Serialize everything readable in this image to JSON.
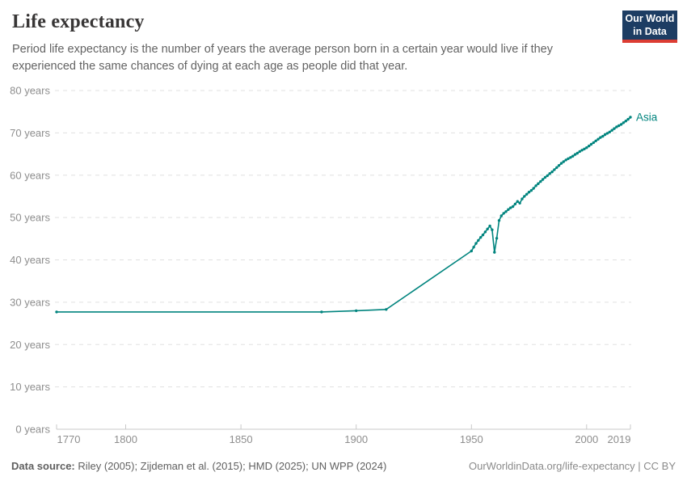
{
  "header": {
    "title": "Life expectancy",
    "subtitle": "Period life expectancy is the number of years the average person born in a certain year would live if they experienced the same chances of dying at each age as people did that year.",
    "logo": {
      "line1": "Our World",
      "line2": "in Data"
    }
  },
  "colors": {
    "accent": "#00847E",
    "grid": "#e0e0e0",
    "axis": "#c9c9c9",
    "tick_label": "#8e8e8e",
    "logo_bg": "#1d3d63",
    "logo_stripe": "#dc3d33",
    "title_text": "#383636",
    "subtitle_text": "#636363"
  },
  "chart_data": {
    "type": "line",
    "title": "Life expectancy",
    "xlabel": "",
    "ylabel": "",
    "xlim": [
      1770,
      2019
    ],
    "ylim": [
      0,
      80
    ],
    "x_ticks": [
      1770,
      1800,
      1850,
      1900,
      1950,
      2000,
      2019
    ],
    "y_ticks": [
      0,
      10,
      20,
      30,
      40,
      50,
      60,
      70,
      80
    ],
    "y_tick_suffix": " years",
    "grid": "horizontal-dashed",
    "legend": "end-of-line-label",
    "series": [
      {
        "name": "Asia",
        "color": "#00847E",
        "points": [
          [
            1770,
            27.7
          ],
          [
            1885,
            27.7
          ],
          [
            1900,
            28.0
          ],
          [
            1913,
            28.3
          ],
          [
            1950,
            42.1
          ],
          [
            1951,
            43.0
          ],
          [
            1952,
            43.9
          ],
          [
            1953,
            44.6
          ],
          [
            1954,
            45.3
          ],
          [
            1955,
            45.9
          ],
          [
            1956,
            46.6
          ],
          [
            1957,
            47.3
          ],
          [
            1958,
            48.0
          ],
          [
            1959,
            47.1
          ],
          [
            1960,
            41.8
          ],
          [
            1961,
            45.1
          ],
          [
            1962,
            49.3
          ],
          [
            1963,
            50.4
          ],
          [
            1964,
            51.0
          ],
          [
            1965,
            51.4
          ],
          [
            1966,
            51.9
          ],
          [
            1967,
            52.3
          ],
          [
            1968,
            52.6
          ],
          [
            1969,
            53.2
          ],
          [
            1970,
            53.8
          ],
          [
            1971,
            53.4
          ],
          [
            1972,
            54.4
          ],
          [
            1973,
            55.0
          ],
          [
            1974,
            55.5
          ],
          [
            1975,
            56.0
          ],
          [
            1976,
            56.4
          ],
          [
            1977,
            56.9
          ],
          [
            1978,
            57.5
          ],
          [
            1979,
            58.0
          ],
          [
            1980,
            58.5
          ],
          [
            1981,
            59.0
          ],
          [
            1982,
            59.5
          ],
          [
            1983,
            59.9
          ],
          [
            1984,
            60.4
          ],
          [
            1985,
            60.8
          ],
          [
            1986,
            61.3
          ],
          [
            1987,
            61.8
          ],
          [
            1988,
            62.3
          ],
          [
            1989,
            62.8
          ],
          [
            1990,
            63.2
          ],
          [
            1991,
            63.6
          ],
          [
            1992,
            63.9
          ],
          [
            1993,
            64.2
          ],
          [
            1994,
            64.5
          ],
          [
            1995,
            64.9
          ],
          [
            1996,
            65.2
          ],
          [
            1997,
            65.6
          ],
          [
            1998,
            65.9
          ],
          [
            1999,
            66.2
          ],
          [
            2000,
            66.5
          ],
          [
            2001,
            66.9
          ],
          [
            2002,
            67.3
          ],
          [
            2003,
            67.7
          ],
          [
            2004,
            68.1
          ],
          [
            2005,
            68.5
          ],
          [
            2006,
            68.9
          ],
          [
            2007,
            69.2
          ],
          [
            2008,
            69.6
          ],
          [
            2009,
            69.9
          ],
          [
            2010,
            70.2
          ],
          [
            2011,
            70.6
          ],
          [
            2012,
            71.0
          ],
          [
            2013,
            71.4
          ],
          [
            2014,
            71.7
          ],
          [
            2015,
            72.0
          ],
          [
            2016,
            72.4
          ],
          [
            2017,
            72.8
          ],
          [
            2018,
            73.2
          ],
          [
            2019,
            73.7
          ]
        ]
      }
    ]
  },
  "footer": {
    "datasource_label": "Data source:",
    "datasource_text": " Riley (2005); Zijdeman et al. (2015); HMD (2025); UN WPP (2024)",
    "link_text": "OurWorldinData.org/life-expectancy | CC BY"
  }
}
